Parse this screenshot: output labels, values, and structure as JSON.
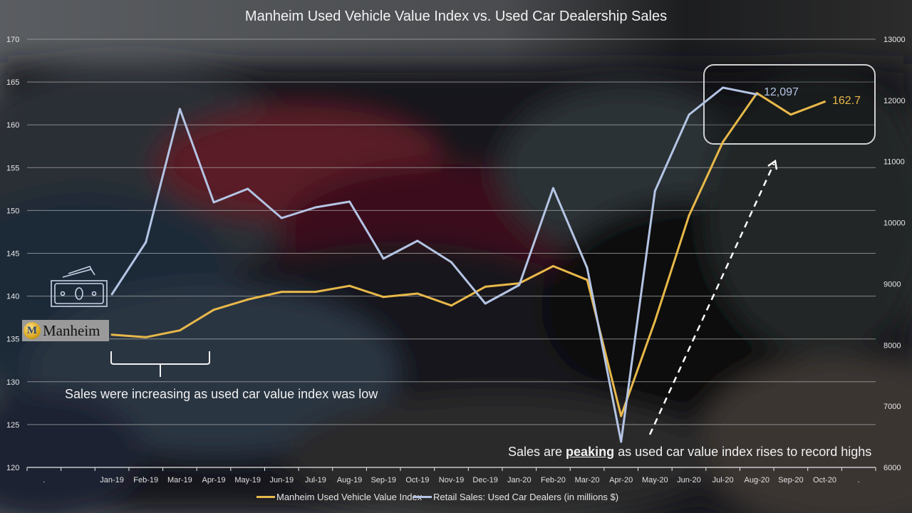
{
  "chart_data": {
    "type": "line",
    "title": "Manheim Used Vehicle Value Index vs. Used Car Dealership Sales",
    "categories": [
      ".",
      "",
      "Jan-19",
      "Feb-19",
      "Mar-19",
      "Apr-19",
      "May-19",
      "Jun-19",
      "Jul-19",
      "Aug-19",
      "Sep-19",
      "Oct-19",
      "Nov-19",
      "Dec-19",
      "Jan-20",
      "Feb-20",
      "Mar-20",
      "Apr-20",
      "May-20",
      "Jun-20",
      "Jul-20",
      "Aug-20",
      "Sep-20",
      "Oct-20",
      "."
    ],
    "series": [
      {
        "name": "Manheim Used Vehicle Value Index",
        "axis": "left",
        "color": "#e8b84a",
        "values": [
          null,
          null,
          135.5,
          135.2,
          136.0,
          138.4,
          139.6,
          140.5,
          140.5,
          141.2,
          139.9,
          140.3,
          138.9,
          141.1,
          141.5,
          143.5,
          141.9,
          126.0,
          137.1,
          149.4,
          158.0,
          163.7,
          161.2,
          162.7,
          null
        ]
      },
      {
        "name": "Retail Sales: Used Car Dealers (in millions $)",
        "axis": "right",
        "color": "#b4c4e4",
        "values": [
          null,
          null,
          8830,
          9680,
          11858,
          10333,
          10554,
          10076,
          10251,
          10344,
          9413,
          9704,
          9354,
          8679,
          8982,
          10566,
          9261,
          6419,
          10519,
          11765,
          12208,
          12097,
          null,
          null,
          null
        ]
      }
    ],
    "y_left": {
      "ticks": [
        "120",
        "125",
        "130",
        "135",
        "140",
        "145",
        "150",
        "155",
        "160",
        "165",
        "170"
      ],
      "range": [
        120,
        170
      ]
    },
    "y_right": {
      "ticks": [
        "6000",
        "7000",
        "8000",
        "9000",
        "10000",
        "11000",
        "12000",
        "13000"
      ],
      "range": [
        6000,
        13000
      ]
    },
    "grid": true,
    "legend": {
      "position": "bottom",
      "entries": [
        "Manheim Used Vehicle Value Index",
        "Retail Sales: Used Car Dealers (in millions $)"
      ]
    },
    "data_labels": {
      "sales_last": "12,097",
      "index_last": "162.7"
    },
    "annotations": {
      "left": "Sales were increasing as used car value index was low",
      "right_pre": "Sales are ",
      "right_bold": "peaking",
      "right_post": " as used car value index rises to record highs"
    }
  },
  "logo": {
    "text": "Manheim",
    "letter": "M"
  },
  "icons": {
    "money": "money-bill-icon"
  },
  "colors": {
    "index": "#e8b84a",
    "sales": "#b4c4e4",
    "grid": "#a8a8a8"
  }
}
